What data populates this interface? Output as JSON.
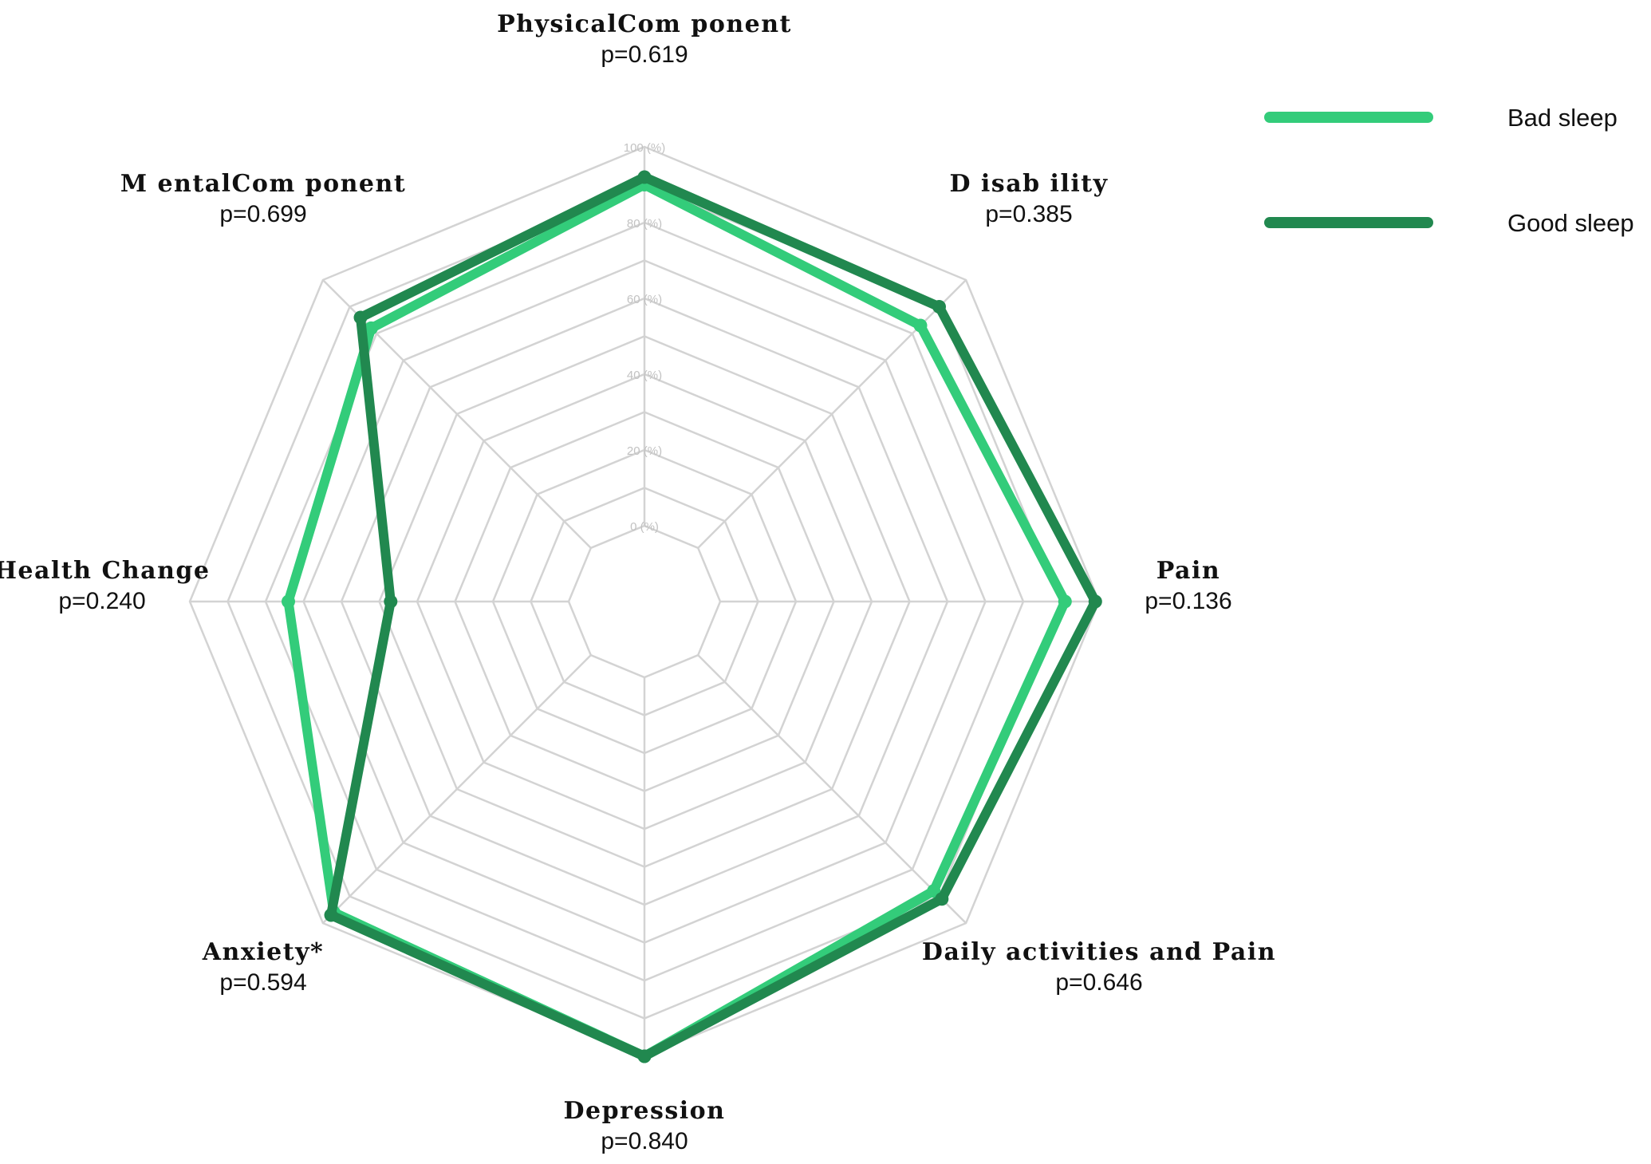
{
  "chart_data": {
    "type": "radar",
    "axes": [
      {
        "name": "PhysicalCom ponent",
        "p": "p=0.619"
      },
      {
        "name": "D isab ility",
        "p": "p=0.385"
      },
      {
        "name": "Pain",
        "p": "p=0.136"
      },
      {
        "name": "Daily activities and Pain",
        "p": "p=0.646"
      },
      {
        "name": "Depression",
        "p": "p=0.840"
      },
      {
        "name": "Anxiety*",
        "p": "p=0.594"
      },
      {
        "name": "Health Change",
        "p": "p=0.240"
      },
      {
        "name": "M entalCom ponent",
        "p": "p=0.699"
      }
    ],
    "radial_ticks": [
      "0 (%)",
      "20 (%)",
      "40 (%)",
      "60 (%)",
      "80 (%)",
      "100 (%)"
    ],
    "range": [
      0,
      100
    ],
    "series": [
      {
        "name": "Bad sleep",
        "color": "#33cc7a",
        "values": [
          90,
          83,
          91,
          88,
          100,
          96,
          74,
          82
        ]
      },
      {
        "name": "Good sleep",
        "color": "#21884f",
        "values": [
          92,
          90,
          99,
          91,
          100,
          97,
          47,
          86
        ]
      }
    ],
    "grid": true,
    "legend_position": "top-right"
  }
}
